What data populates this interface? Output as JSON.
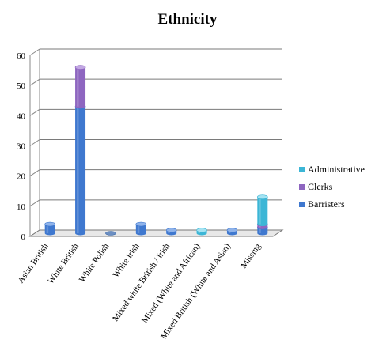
{
  "chart_data": {
    "type": "bar",
    "stacked": true,
    "three_d": true,
    "title": "Ethnicity",
    "xlabel": "",
    "ylabel": "",
    "ylim": [
      0,
      60
    ],
    "yticks": [
      "0",
      "10",
      "20",
      "30",
      "40",
      "50",
      "60"
    ],
    "grid": true,
    "legend_position": "right",
    "categories": [
      "Asian British",
      "White British",
      "White Polish",
      "White Irish",
      "Mixed white British / Irish",
      "Mixed (White and African)",
      "Mixed British  (White and Asian)",
      "Missing"
    ],
    "series": [
      {
        "name": "Barristers",
        "values": [
          3,
          42,
          0,
          3,
          1,
          0,
          1,
          2
        ],
        "color": "#3f78cf",
        "top_color": "#8fb3ea"
      },
      {
        "name": "Clerks",
        "values": [
          0,
          13,
          0,
          0,
          0,
          0,
          0,
          1
        ],
        "color": "#8e66c0",
        "top_color": "#c2a7e3"
      },
      {
        "name": "Administrative",
        "values": [
          0,
          0,
          0,
          0,
          0,
          1,
          0,
          9
        ],
        "color": "#3cb6d6",
        "top_color": "#a5e3f2"
      }
    ],
    "legend_order": [
      "Administrative",
      "Clerks",
      "Barristers"
    ]
  }
}
